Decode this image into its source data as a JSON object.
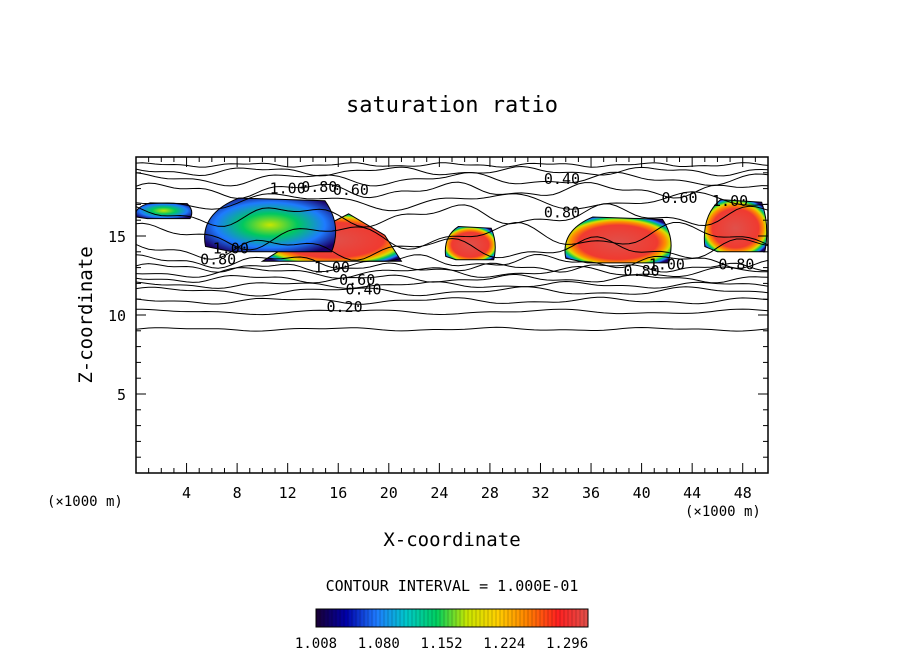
{
  "chart_data": {
    "type": "contour",
    "title": "saturation ratio",
    "xlabel": "X-coordinate",
    "ylabel": "Z-coordinate",
    "x_unit_left": "(×1000 m)",
    "x_unit_right": "(×1000 m)",
    "xlim": [
      0,
      50
    ],
    "ylim": [
      0,
      20
    ],
    "xticks": [
      4,
      8,
      12,
      16,
      20,
      24,
      28,
      32,
      36,
      40,
      44,
      48
    ],
    "yticks": [
      5,
      10,
      15
    ],
    "contour_interval_text": "CONTOUR INTERVAL = 1.000E-01",
    "colorbar_min": 1.008,
    "colorbar_max": 1.32,
    "colorbar_labels": [
      "1.008",
      "1.080",
      "1.152",
      "1.224",
      "1.296"
    ],
    "colorbar_colors": [
      "#1a0033",
      "#0000aa",
      "#1e7bff",
      "#00c8c8",
      "#00d060",
      "#c8e600",
      "#ffd000",
      "#ff8000",
      "#ff2020",
      "#e0504a"
    ],
    "contour_labels": [
      {
        "text": "0.20",
        "x": 16.5,
        "z": 10.5
      },
      {
        "text": "0.40",
        "x": 18.0,
        "z": 11.6
      },
      {
        "text": "0.60",
        "x": 17.5,
        "z": 12.2
      },
      {
        "text": "1.00",
        "x": 15.5,
        "z": 13.0
      },
      {
        "text": "1.00",
        "x": 7.5,
        "z": 14.2
      },
      {
        "text": "0.80",
        "x": 6.5,
        "z": 13.5
      },
      {
        "text": "1.00",
        "x": 12.0,
        "z": 18.0
      },
      {
        "text": "0.80",
        "x": 14.5,
        "z": 18.1
      },
      {
        "text": "0.60",
        "x": 17.0,
        "z": 17.9
      },
      {
        "text": "0.40",
        "x": 33.7,
        "z": 18.6
      },
      {
        "text": "0.80",
        "x": 33.7,
        "z": 16.5
      },
      {
        "text": "0.60",
        "x": 43.0,
        "z": 17.4
      },
      {
        "text": "1.00",
        "x": 47.0,
        "z": 17.2
      },
      {
        "text": "0.80",
        "x": 40.0,
        "z": 12.8
      },
      {
        "text": "1.00",
        "x": 42.0,
        "z": 13.2
      },
      {
        "text": "0.80",
        "x": 47.5,
        "z": 13.2
      }
    ],
    "supersaturated_regions": [
      {
        "x_range": [
          10,
          21
        ],
        "z_range": [
          13.4,
          16.4
        ],
        "peak": 1.296
      },
      {
        "x_range": [
          24.5,
          28.5
        ],
        "z_range": [
          13.5,
          15.6
        ],
        "peak": 1.296
      },
      {
        "x_range": [
          34,
          42.5
        ],
        "z_range": [
          13.3,
          16.2
        ],
        "peak": 1.296
      },
      {
        "x_range": [
          45,
          50
        ],
        "z_range": [
          14,
          17.3
        ],
        "peak": 1.296
      },
      {
        "x_range": [
          0,
          4.5
        ],
        "z_range": [
          16.1,
          17.1
        ],
        "peak": 1.08
      },
      {
        "x_range": [
          5.5,
          16
        ],
        "z_range": [
          14,
          17.4
        ],
        "peak": 1.152
      }
    ]
  }
}
